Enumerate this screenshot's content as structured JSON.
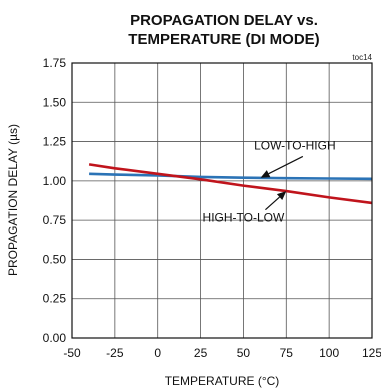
{
  "chart_data": {
    "type": "line",
    "title_line1": "PROPAGATION DELAY vs.",
    "title_line2": "TEMPERATURE (DI MODE)",
    "figure_code": "toc14",
    "xlabel": "TEMPERATURE (°C)",
    "ylabel": "PROPAGATION DELAY (µs)",
    "xlim": [
      -50,
      125
    ],
    "ylim": [
      0,
      1.75
    ],
    "xticks": [
      -50,
      -25,
      0,
      25,
      50,
      75,
      100,
      125
    ],
    "yticks": [
      0,
      0.25,
      0.5,
      0.75,
      1.0,
      1.25,
      1.5,
      1.75
    ],
    "xtick_labels": [
      "-50",
      "-25",
      "0",
      "25",
      "50",
      "75",
      "100",
      "125"
    ],
    "ytick_labels": [
      "0.00",
      "0.25",
      "0.50",
      "0.75",
      "1.00",
      "1.25",
      "1.50",
      "1.75"
    ],
    "grid": true,
    "series": [
      {
        "name": "LOW-TO-HIGH",
        "color": "#2b73b6",
        "x": [
          -40,
          -25,
          0,
          25,
          50,
          75,
          100,
          125
        ],
        "y": [
          1.045,
          1.04,
          1.035,
          1.025,
          1.02,
          1.017,
          1.015,
          1.013
        ]
      },
      {
        "name": "HIGH-TO-LOW",
        "color": "#c0141c",
        "x": [
          -40,
          -25,
          0,
          25,
          50,
          75,
          100,
          125
        ],
        "y": [
          1.105,
          1.08,
          1.045,
          1.01,
          0.97,
          0.935,
          0.895,
          0.86
        ]
      }
    ],
    "annotations": [
      {
        "text": "LOW-TO-HIGH",
        "series": 0,
        "arrow_to": [
          60,
          1.02
        ],
        "label_at": [
          80,
          1.2
        ]
      },
      {
        "text": "HIGH-TO-LOW",
        "series": 1,
        "arrow_to": [
          75,
          0.935
        ],
        "label_at": [
          50,
          0.74
        ]
      }
    ]
  }
}
